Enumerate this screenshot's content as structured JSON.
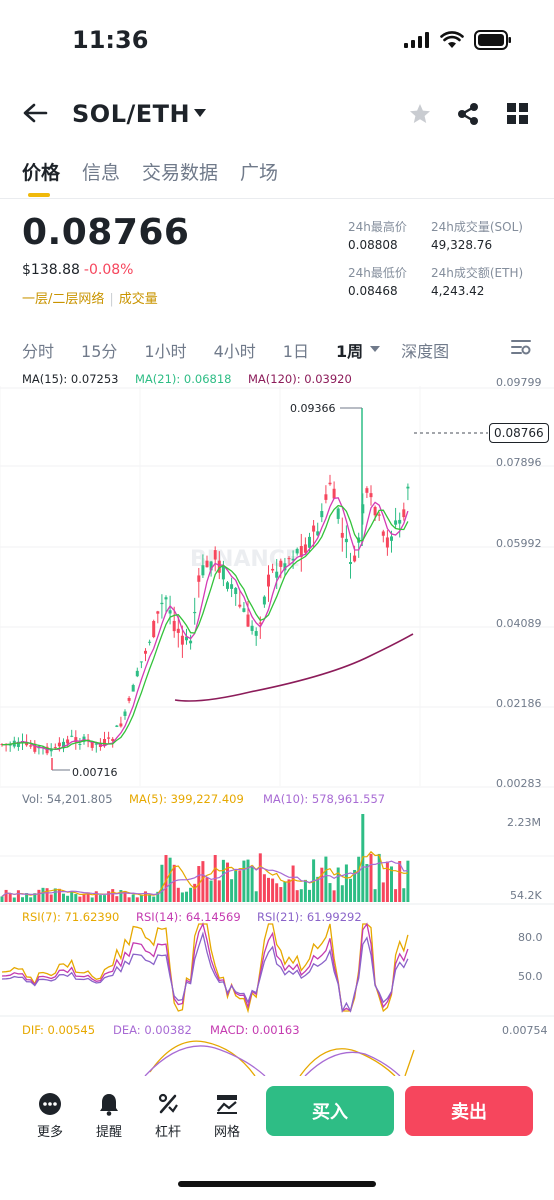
{
  "status": {
    "time": "11:36"
  },
  "header": {
    "pair": "SOL/ETH"
  },
  "tabs": [
    "价格",
    "信息",
    "交易数据",
    "广场"
  ],
  "summary": {
    "price": "0.08766",
    "fiat": "$138.88",
    "change": "-0.08%",
    "tags": [
      "一层/二层网络",
      "成交量"
    ],
    "stats": {
      "high_label": "24h最高价",
      "high": "0.08808",
      "vol_label": "24h成交量(SOL)",
      "vol": "49,328.76",
      "low_label": "24h最低价",
      "low": "0.08468",
      "amt_label": "24h成交额(ETH)",
      "amt": "4,243.42"
    }
  },
  "intervals": {
    "items": [
      "分时",
      "15分",
      "1小时",
      "4小时",
      "1日"
    ],
    "selected": "1周",
    "depth": "深度图"
  },
  "main_chart": {
    "ma": [
      "MA(15): 0.07253",
      "MA(21): 0.06818",
      "MA(120): 0.03920"
    ],
    "axis": [
      "0.09799",
      "0.07896",
      "0.05992",
      "0.04089",
      "0.02186",
      "0.00283"
    ],
    "current_price": "0.08766",
    "high_mark": "0.09366",
    "low_mark": "0.00716",
    "watermark": "BINANCE"
  },
  "volume": {
    "legend": [
      "Vol: 54,201.805",
      "MA(5): 399,227.409",
      "MA(10): 578,961.557"
    ],
    "axis": [
      "2.23M",
      "54.2K"
    ]
  },
  "rsi": {
    "legend": [
      "RSI(7): 71.62390",
      "RSI(14): 64.14569",
      "RSI(21): 61.99292"
    ],
    "axis": [
      "80.0",
      "50.0"
    ]
  },
  "macd": {
    "legend": [
      "DIF: 0.00545",
      "DEA: 0.00382",
      "MACD: 0.00163"
    ],
    "axis": [
      "0.00754"
    ]
  },
  "bottom": {
    "tools": [
      "更多",
      "提醒",
      "杠杆",
      "网格"
    ],
    "buy": "买入",
    "sell": "卖出"
  },
  "colors": {
    "up": "#2ebd85",
    "down": "#f6465d",
    "accent": "#f0b90b",
    "ma15": "#d43bb5",
    "ma21": "#33c23a",
    "ma120": "#8c1c5a"
  }
}
